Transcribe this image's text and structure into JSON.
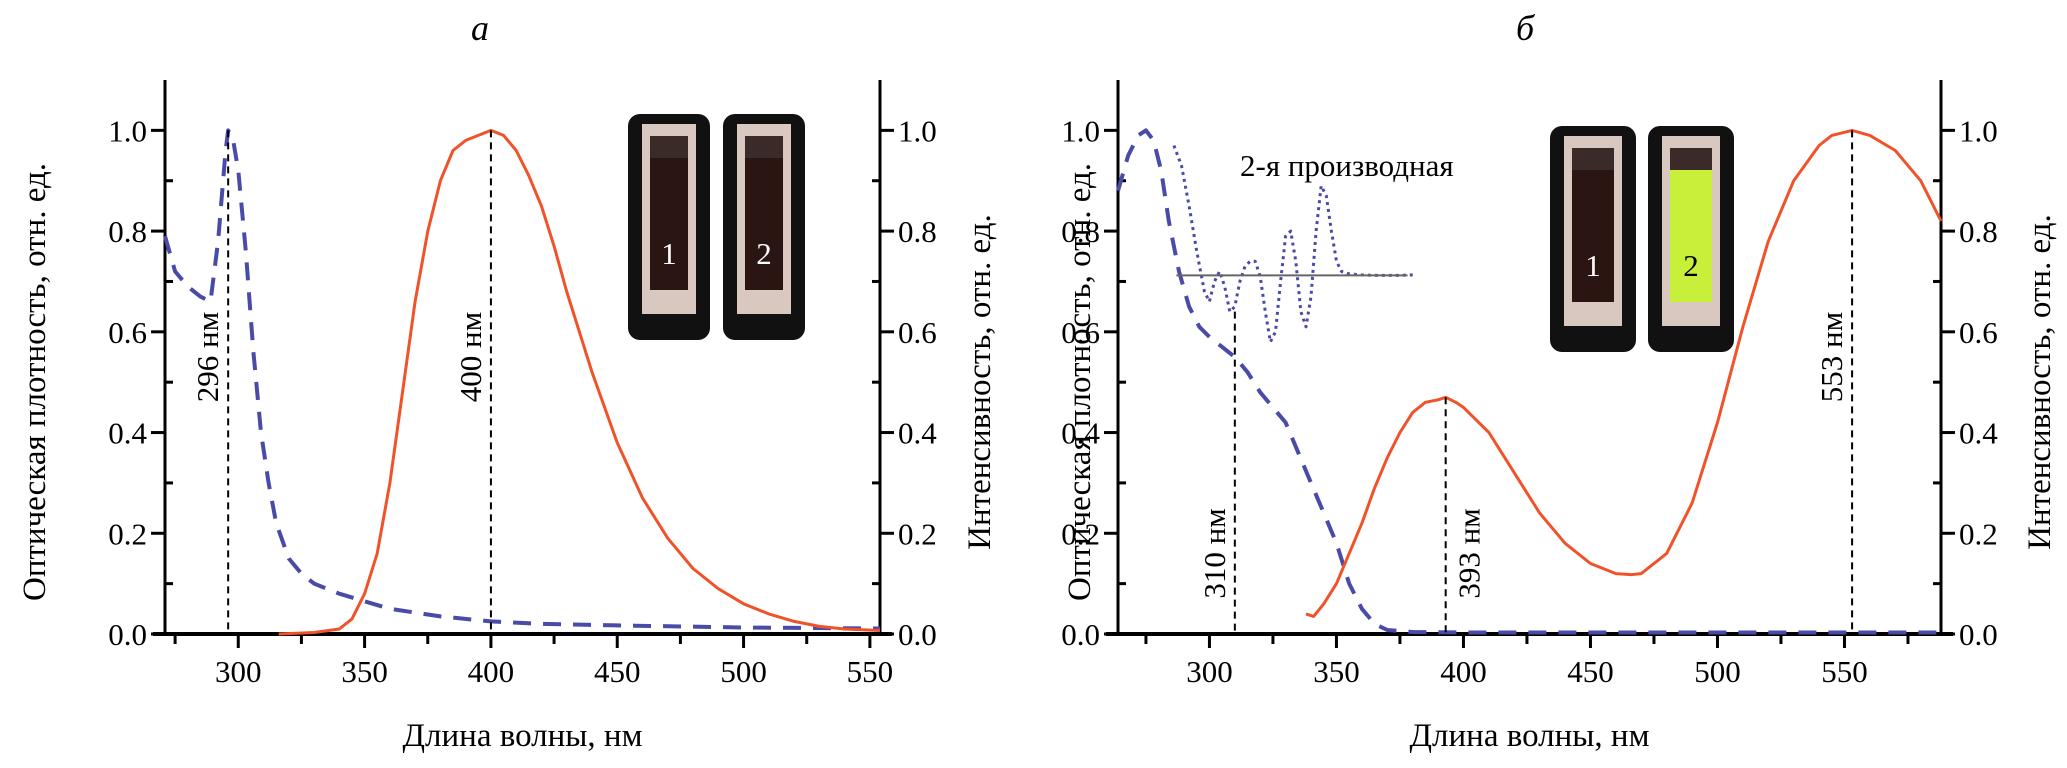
{
  "chart_data": [
    {
      "panel_label": "а",
      "type": "line",
      "xlabel": "Длина волны, нм",
      "ylabel_left": "Оптическая плотность, отн. ед.",
      "ylabel_right": "Интенсивность, отн. ед.",
      "xlim": [
        271,
        554
      ],
      "ylim": [
        0,
        1.1
      ],
      "xticks": [
        300,
        350,
        400,
        450,
        500,
        550
      ],
      "yticks": [
        0.0,
        0.2,
        0.4,
        0.6,
        0.8,
        1.0
      ],
      "ytick_labels": [
        "0.0",
        "0.2",
        "0.4",
        "0.6",
        "0.8",
        "1.0"
      ],
      "annotations": [
        {
          "x": 296,
          "label": "296 нм"
        },
        {
          "x": 400,
          "label": "400 нм"
        }
      ],
      "inset": {
        "cuvettes": [
          "1",
          "2"
        ],
        "colors": [
          "#2a1512",
          "#2a1512"
        ]
      },
      "series": [
        {
          "name": "absorption",
          "style": "dashed",
          "color": "#4a4aa8",
          "x": [
            271,
            275,
            280,
            285,
            289,
            292,
            295,
            296,
            298,
            300,
            303,
            306,
            309,
            312,
            315,
            320,
            325,
            330,
            340,
            350,
            360,
            380,
            400,
            420,
            450,
            500,
            554
          ],
          "y": [
            0.79,
            0.72,
            0.69,
            0.67,
            0.66,
            0.78,
            0.96,
            1.0,
            0.98,
            0.92,
            0.76,
            0.56,
            0.4,
            0.3,
            0.22,
            0.15,
            0.12,
            0.1,
            0.08,
            0.065,
            0.05,
            0.035,
            0.025,
            0.02,
            0.017,
            0.013,
            0.011
          ]
        },
        {
          "name": "emission",
          "style": "solid",
          "color": "#f0532a",
          "x": [
            316,
            330,
            340,
            345,
            350,
            355,
            360,
            365,
            370,
            375,
            380,
            385,
            390,
            395,
            400,
            405,
            410,
            415,
            420,
            425,
            430,
            440,
            450,
            460,
            470,
            480,
            490,
            500,
            510,
            520,
            530,
            540,
            554
          ],
          "y": [
            0.0,
            0.003,
            0.01,
            0.03,
            0.08,
            0.16,
            0.3,
            0.48,
            0.66,
            0.8,
            0.9,
            0.96,
            0.98,
            0.99,
            1.0,
            0.99,
            0.96,
            0.91,
            0.85,
            0.77,
            0.68,
            0.52,
            0.38,
            0.27,
            0.19,
            0.13,
            0.09,
            0.06,
            0.04,
            0.025,
            0.015,
            0.01,
            0.007
          ]
        }
      ]
    },
    {
      "panel_label": "б",
      "type": "line",
      "xlabel": "Длина волны, нм",
      "ylabel_left": "Оптическая плотность, отн. ед.",
      "ylabel_right": "Интенсивность, отн. ед.",
      "xlim": [
        264,
        588
      ],
      "ylim": [
        0,
        1.1
      ],
      "xticks": [
        300,
        350,
        400,
        450,
        500,
        550
      ],
      "yticks": [
        0.0,
        0.2,
        0.4,
        0.6,
        0.8,
        1.0
      ],
      "ytick_labels": [
        "0.0",
        "0.2",
        "0.4",
        "0.6",
        "0.8",
        "1.0"
      ],
      "annotations": [
        {
          "x": 310,
          "label": "310 нм"
        },
        {
          "x": 393,
          "label": "393 нм"
        },
        {
          "x": 553,
          "label": "553 нм"
        }
      ],
      "inset_label": "2-я производная",
      "inset": {
        "cuvettes": [
          "1",
          "2"
        ],
        "colors": [
          "#2a1512",
          "#c8f03a"
        ]
      },
      "series": [
        {
          "name": "absorption",
          "style": "dashed",
          "color": "#4a4aa8",
          "x": [
            264,
            268,
            272,
            275,
            278,
            281,
            284,
            288,
            292,
            296,
            300,
            305,
            310,
            315,
            320,
            325,
            330,
            335,
            340,
            345,
            350,
            355,
            360,
            365,
            370,
            380,
            400,
            450,
            500,
            550,
            588
          ],
          "y": [
            0.88,
            0.95,
            0.99,
            1.0,
            0.98,
            0.92,
            0.82,
            0.72,
            0.65,
            0.61,
            0.59,
            0.57,
            0.55,
            0.52,
            0.48,
            0.45,
            0.42,
            0.36,
            0.3,
            0.24,
            0.18,
            0.1,
            0.05,
            0.02,
            0.008,
            0.004,
            0.003,
            0.003,
            0.003,
            0.003,
            0.003
          ]
        },
        {
          "name": "emission",
          "style": "solid",
          "color": "#f0532a",
          "x": [
            338,
            341,
            345,
            350,
            355,
            360,
            365,
            370,
            375,
            380,
            385,
            390,
            393,
            397,
            400,
            410,
            420,
            430,
            440,
            450,
            460,
            466,
            470,
            480,
            490,
            500,
            510,
            520,
            530,
            540,
            545,
            553,
            560,
            570,
            580,
            588
          ],
          "y": [
            0.04,
            0.035,
            0.06,
            0.1,
            0.16,
            0.22,
            0.29,
            0.35,
            0.4,
            0.44,
            0.46,
            0.465,
            0.47,
            0.46,
            0.45,
            0.4,
            0.32,
            0.24,
            0.18,
            0.14,
            0.12,
            0.118,
            0.12,
            0.16,
            0.26,
            0.42,
            0.61,
            0.78,
            0.9,
            0.97,
            0.99,
            1.0,
            0.99,
            0.96,
            0.9,
            0.82
          ]
        },
        {
          "name": "second_derivative",
          "style": "dotted",
          "color": "#4a4aa8",
          "x": [
            286,
            289,
            292,
            295,
            298,
            300,
            302,
            304,
            306,
            308,
            310,
            312,
            314,
            316,
            318,
            320,
            322,
            324,
            326,
            328,
            330,
            332,
            334,
            336,
            338,
            340,
            342,
            344,
            346,
            348,
            350,
            352,
            355,
            360,
            365,
            370,
            375,
            380
          ],
          "y": [
            0.97,
            0.93,
            0.85,
            0.76,
            0.68,
            0.66,
            0.7,
            0.72,
            0.69,
            0.64,
            0.65,
            0.7,
            0.73,
            0.74,
            0.74,
            0.71,
            0.64,
            0.58,
            0.6,
            0.7,
            0.79,
            0.8,
            0.74,
            0.64,
            0.61,
            0.67,
            0.8,
            0.89,
            0.87,
            0.8,
            0.74,
            0.72,
            0.715,
            0.713,
            0.712,
            0.712,
            0.712,
            0.713
          ]
        }
      ],
      "derivative_baseline_y": 0.712,
      "derivative_baseline_x": [
        287,
        378
      ]
    }
  ]
}
